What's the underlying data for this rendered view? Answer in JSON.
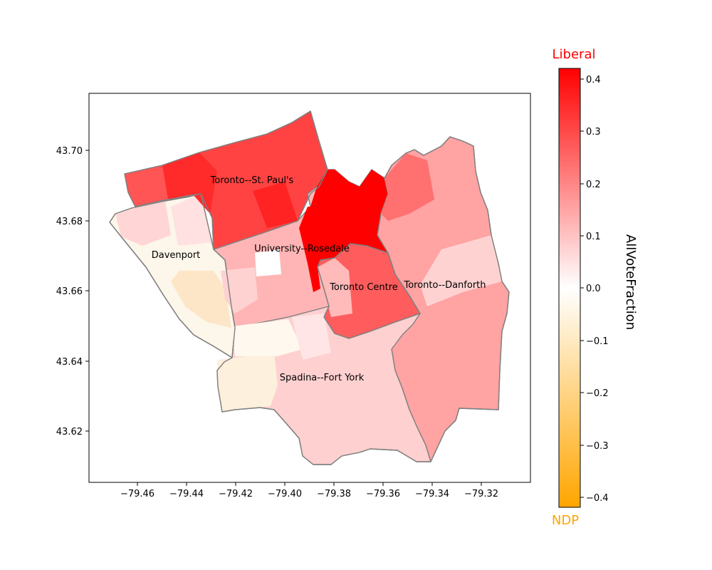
{
  "map": {
    "x_ticks": [
      "−79.46",
      "−79.44",
      "−79.42",
      "−79.40",
      "−79.38",
      "−79.36",
      "−79.34",
      "−79.32"
    ],
    "y_ticks": [
      "43.62",
      "43.64",
      "43.66",
      "43.68",
      "43.70"
    ],
    "districts": [
      {
        "name": "Toronto--St. Paul's",
        "value": 0.3
      },
      {
        "name": "University--Rosedale",
        "value": 0.25
      },
      {
        "name": "Davenport",
        "value": -0.04
      },
      {
        "name": "Toronto Centre",
        "value": 0.35
      },
      {
        "name": "Toronto--Danforth",
        "value": 0.15
      },
      {
        "name": "Spadina--Fort York",
        "value": 0.05
      }
    ]
  },
  "colorbar": {
    "title": "AllVoteFraction",
    "top_label": "Liberal",
    "bottom_label": "NDP",
    "ticks": [
      "0.4",
      "0.3",
      "0.2",
      "0.1",
      "0.0",
      "−0.1",
      "−0.2",
      "−0.3",
      "−0.4"
    ],
    "range": [
      -0.42,
      0.42
    ],
    "colors": {
      "high": "#ff0000",
      "mid": "#ffffff",
      "low": "#ffa500",
      "outline": "#808080"
    }
  }
}
